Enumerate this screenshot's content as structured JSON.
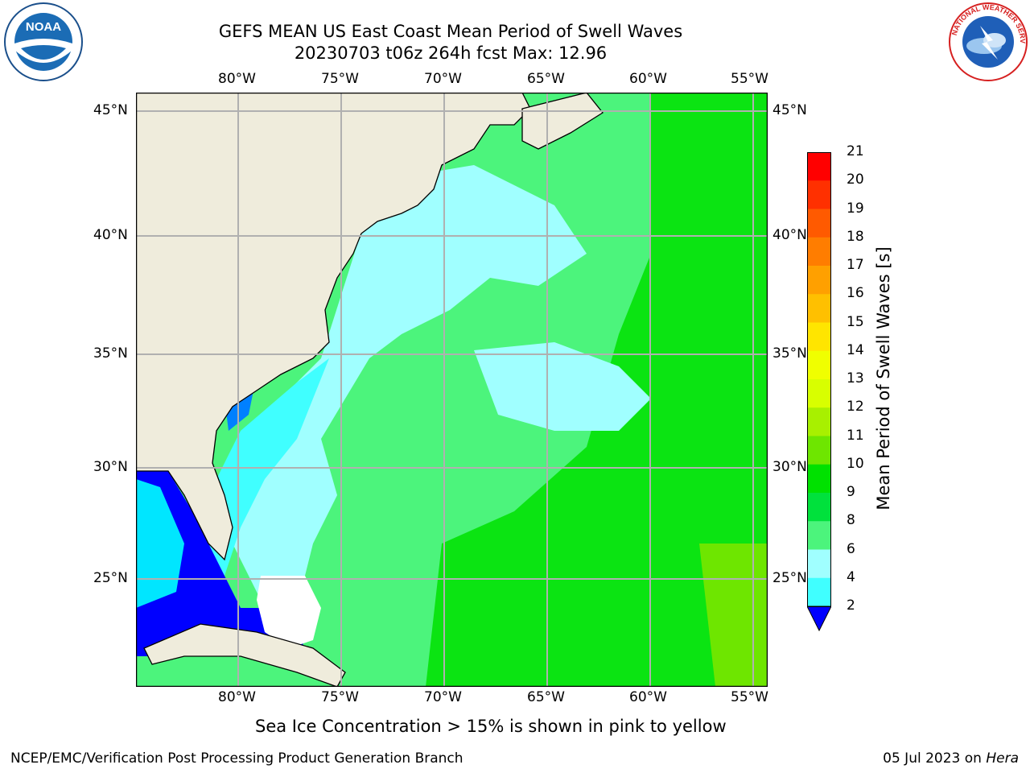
{
  "header": {
    "title_line1": "GEFS MEAN US East Coast Mean Period of Swell Waves",
    "title_line2": "20230703 t06z 264h fcst   Max: 12.96"
  },
  "logos": {
    "left": {
      "icon": "noaa-logo-icon",
      "text": "NOAA"
    },
    "right": {
      "icon": "nws-logo-icon",
      "text": "NATIONAL WEATHER SERVICE"
    }
  },
  "map": {
    "lon_labels": [
      "80°W",
      "75°W",
      "70°W",
      "65°W",
      "60°W",
      "55°W"
    ],
    "lat_labels": [
      "45°N",
      "40°N",
      "35°N",
      "30°N",
      "25°N"
    ],
    "land_color": "#efecdc",
    "grid_color": "#b0b0b0"
  },
  "colorbar": {
    "label": "Mean Period of Swell Waves [s]",
    "ticks": [
      "21",
      "20",
      "19",
      "18",
      "17",
      "16",
      "15",
      "14",
      "13",
      "12",
      "11",
      "10",
      "9",
      "8",
      "6",
      "4",
      "2"
    ],
    "colors": [
      "#ff0000",
      "#ff3000",
      "#ff5a00",
      "#ff7d00",
      "#ffa000",
      "#ffc000",
      "#ffe500",
      "#f0ff00",
      "#d8ff00",
      "#a8f000",
      "#6ee600",
      "#00e100",
      "#00e13c",
      "#4cf47c",
      "#a0ffff",
      "#40ffff",
      "#00e6ff",
      "#0080ff",
      "#0000ff"
    ]
  },
  "footer": {
    "note": "Sea Ice Concentration > 15% is shown in pink to yellow",
    "left": "NCEP/EMC/Verification Post Processing Product Generation Branch",
    "date": "05 Jul 2023 on ",
    "host": "Hera"
  }
}
